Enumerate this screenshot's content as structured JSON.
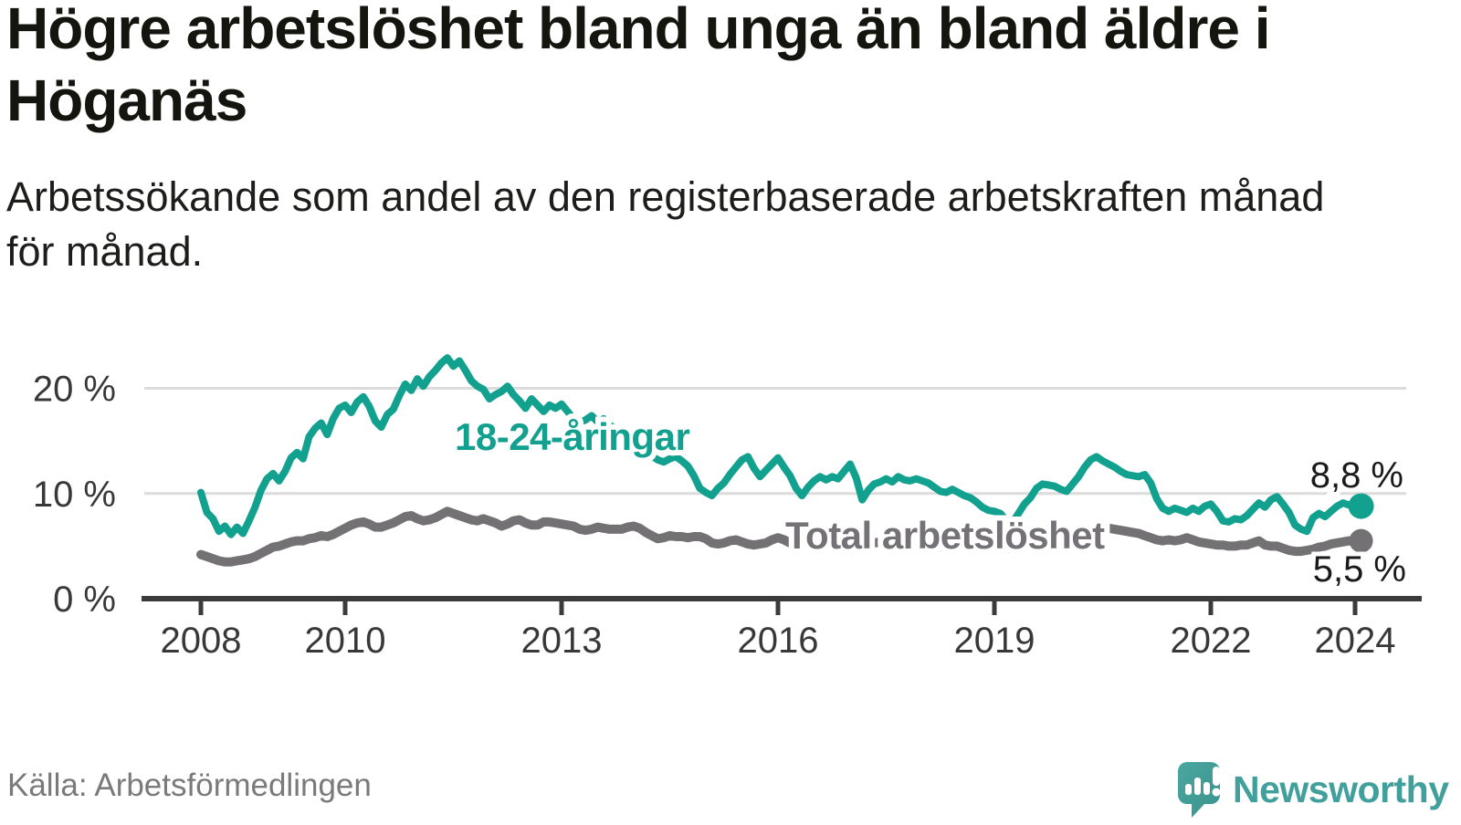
{
  "header": {
    "title": "Högre arbetslöshet bland unga än bland äldre i\nHöganäs",
    "subtitle": "Arbetssökande som andel av den registerbaserade arbetskraften månad\nför månad."
  },
  "footer": {
    "source": "Källa: Arbetsförmedlingen",
    "brand": "Newsworthy"
  },
  "colors": {
    "youth_teal": "#12a08f",
    "total_gray": "#747175",
    "label_gray": "#757277",
    "grid": "#dcdcdc",
    "axis": "#3b3b3b",
    "text_dark": "#15150f",
    "logo_teal": "#41a09b",
    "end_label_black": "#1a1a1a"
  },
  "chart_data": {
    "type": "line",
    "title": "Högre arbetslöshet bland unga än bland äldre i Höganäs",
    "subtitle": "Arbetssökande som andel av den registerbaserade arbetskraften månad för månad.",
    "x_start_year": 2008,
    "x_step_months": 1,
    "x_end_label": "feb 2024",
    "ylim": [
      0,
      23.5
    ],
    "grid": "horizontal",
    "y_ticks": [
      {
        "value": 0,
        "label": "0 %"
      },
      {
        "value": 10,
        "label": "10 %"
      },
      {
        "value": 20,
        "label": "20 %"
      }
    ],
    "x_ticks": [
      {
        "value": 2008,
        "label": "2008"
      },
      {
        "value": 2010,
        "label": "2010"
      },
      {
        "value": 2013,
        "label": "2013"
      },
      {
        "value": 2016,
        "label": "2016"
      },
      {
        "value": 2019,
        "label": "2019"
      },
      {
        "value": 2022,
        "label": "2022"
      },
      {
        "value": 2024,
        "label": "2024"
      }
    ],
    "series": [
      {
        "name": "Total arbetslöshet",
        "color": "#747175",
        "stroke_width": 10,
        "end_label": "5,5 %",
        "end_value": 5.5,
        "values": [
          4.2,
          4.0,
          3.8,
          3.6,
          3.5,
          3.5,
          3.6,
          3.7,
          3.8,
          4.0,
          4.3,
          4.6,
          4.9,
          5.0,
          5.2,
          5.4,
          5.5,
          5.5,
          5.7,
          5.8,
          6.0,
          5.9,
          6.1,
          6.4,
          6.7,
          7.0,
          7.2,
          7.3,
          7.1,
          6.8,
          6.8,
          7.0,
          7.2,
          7.5,
          7.8,
          7.9,
          7.6,
          7.4,
          7.5,
          7.7,
          8.0,
          8.3,
          8.1,
          7.9,
          7.7,
          7.5,
          7.4,
          7.6,
          7.4,
          7.2,
          6.9,
          7.1,
          7.4,
          7.5,
          7.2,
          7.0,
          7.0,
          7.3,
          7.3,
          7.2,
          7.1,
          7.0,
          6.9,
          6.6,
          6.5,
          6.6,
          6.8,
          6.7,
          6.6,
          6.6,
          6.6,
          6.8,
          6.9,
          6.7,
          6.3,
          6.0,
          5.7,
          5.8,
          6.0,
          5.9,
          5.9,
          5.8,
          5.9,
          5.9,
          5.7,
          5.3,
          5.2,
          5.3,
          5.5,
          5.6,
          5.4,
          5.2,
          5.1,
          5.2,
          5.3,
          5.6,
          5.8,
          5.6,
          5.3,
          5.2,
          5.3,
          5.4,
          5.5,
          5.4,
          5.3,
          5.4,
          5.5,
          5.5,
          5.6,
          5.4,
          5.3,
          5.2,
          5.3,
          5.4,
          5.4,
          5.3,
          5.2,
          5.2,
          5.3,
          5.3,
          5.3,
          5.2,
          5.1,
          5.0,
          4.9,
          5.0,
          5.1,
          5.0,
          4.9,
          4.9,
          4.9,
          5.0,
          5.0,
          4.9,
          4.8,
          4.8,
          4.9,
          5.1,
          5.2,
          5.2,
          5.2,
          5.2,
          5.3,
          5.4,
          5.5,
          5.6,
          5.9,
          6.4,
          6.7,
          6.9,
          6.8,
          6.7,
          6.6,
          6.5,
          6.4,
          6.3,
          6.2,
          6.0,
          5.8,
          5.6,
          5.5,
          5.6,
          5.5,
          5.6,
          5.8,
          5.6,
          5.4,
          5.3,
          5.2,
          5.1,
          5.1,
          5.0,
          5.0,
          5.1,
          5.1,
          5.3,
          5.5,
          5.1,
          5.0,
          5.0,
          4.8,
          4.6,
          4.5,
          4.5,
          4.6,
          4.7,
          4.9,
          5.0,
          5.2,
          5.3,
          5.4,
          5.5,
          5.4,
          5.5
        ]
      },
      {
        "name": "18-24-åringar",
        "color": "#12a08f",
        "stroke_width": 8,
        "end_label": "8,8 %",
        "end_value": 8.8,
        "values": [
          10.1,
          8.2,
          7.6,
          6.4,
          6.9,
          6.1,
          6.8,
          6.2,
          7.4,
          8.7,
          10.3,
          11.4,
          11.9,
          11.2,
          12.1,
          13.4,
          13.9,
          13.3,
          15.4,
          16.2,
          16.7,
          15.6,
          17.1,
          18.1,
          18.4,
          17.7,
          18.7,
          19.2,
          18.3,
          16.9,
          16.3,
          17.5,
          18.0,
          19.3,
          20.4,
          19.8,
          20.9,
          20.2,
          21.1,
          21.7,
          22.4,
          22.9,
          22.1,
          22.6,
          21.7,
          20.7,
          20.2,
          19.9,
          19.0,
          19.4,
          19.7,
          20.2,
          19.4,
          18.8,
          18.1,
          19.0,
          18.4,
          17.8,
          18.4,
          18.1,
          18.5,
          17.8,
          17.1,
          16.7,
          17.0,
          17.4,
          16.8,
          17.1,
          16.5,
          16.1,
          15.7,
          15.2,
          14.7,
          14.3,
          13.9,
          13.6,
          13.2,
          13.0,
          13.3,
          13.5,
          13.1,
          12.6,
          11.7,
          10.5,
          10.1,
          9.8,
          10.5,
          11.0,
          11.8,
          12.5,
          13.2,
          13.5,
          12.4,
          11.6,
          12.2,
          12.8,
          13.4,
          12.5,
          11.7,
          10.5,
          9.8,
          10.6,
          11.2,
          11.6,
          11.3,
          11.6,
          11.4,
          12.1,
          12.8,
          11.5,
          9.4,
          10.3,
          10.9,
          11.1,
          11.4,
          11.1,
          11.6,
          11.3,
          11.2,
          11.4,
          11.2,
          11.0,
          10.6,
          10.2,
          10.1,
          10.4,
          10.1,
          9.8,
          9.6,
          9.2,
          8.7,
          8.4,
          8.3,
          8.1,
          7.4,
          7.2,
          8.1,
          9.0,
          9.6,
          10.5,
          10.9,
          10.8,
          10.7,
          10.4,
          10.2,
          10.9,
          11.6,
          12.5,
          13.2,
          13.5,
          13.1,
          12.8,
          12.5,
          12.1,
          11.8,
          11.7,
          11.6,
          11.8,
          11.0,
          9.5,
          8.6,
          8.3,
          8.6,
          8.4,
          8.2,
          8.6,
          8.3,
          8.8,
          9.0,
          8.3,
          7.4,
          7.3,
          7.6,
          7.5,
          7.9,
          8.5,
          9.1,
          8.7,
          9.4,
          9.7,
          9.0,
          8.2,
          7.0,
          6.6,
          6.4,
          7.7,
          8.1,
          7.8,
          8.3,
          8.8,
          9.1,
          8.9,
          8.6,
          8.8
        ]
      }
    ]
  }
}
